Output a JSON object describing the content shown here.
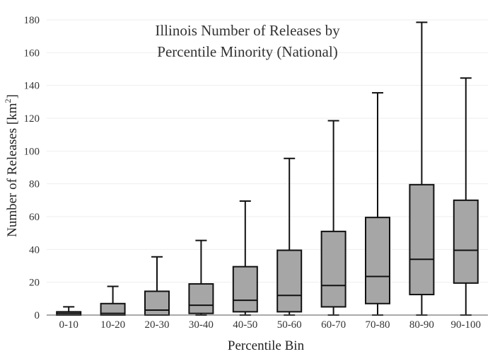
{
  "chart_data": {
    "type": "box",
    "title_lines": [
      "Illinois Number of Releases by",
      "Percentile Minority (National)"
    ],
    "xlabel": "Percentile Bin",
    "ylabel": "Number of Releases  [km",
    "ylabel_sup": "2",
    "ylabel_end": "]",
    "ylim": [
      0,
      180
    ],
    "yticks": [
      0,
      20,
      40,
      60,
      80,
      100,
      120,
      140,
      160,
      180
    ],
    "grid": true,
    "categories": [
      "0-10",
      "10-20",
      "20-30",
      "30-40",
      "40-50",
      "50-60",
      "60-70",
      "70-80",
      "80-90",
      "90-100"
    ],
    "boxes": [
      {
        "min": 0,
        "q1": 0,
        "median": 1,
        "q3": 2,
        "max": 5
      },
      {
        "min": 0,
        "q1": 0,
        "median": 1,
        "q3": 7,
        "max": 17.5
      },
      {
        "min": 0,
        "q1": 0,
        "median": 3,
        "q3": 14.5,
        "max": 35.5
      },
      {
        "min": 0,
        "q1": 1,
        "median": 6,
        "q3": 19,
        "max": 45.5
      },
      {
        "min": 0,
        "q1": 2,
        "median": 9,
        "q3": 29.5,
        "max": 69.5
      },
      {
        "min": 0,
        "q1": 2,
        "median": 12,
        "q3": 39.5,
        "max": 95.5
      },
      {
        "min": 0,
        "q1": 5,
        "median": 18,
        "q3": 51,
        "max": 118.5
      },
      {
        "min": 0,
        "q1": 7,
        "median": 23.5,
        "q3": 59.5,
        "max": 135.5
      },
      {
        "min": 0,
        "q1": 12.5,
        "median": 34,
        "q3": 79.5,
        "max": 178.5
      },
      {
        "min": 0,
        "q1": 19.5,
        "median": 39.5,
        "q3": 70,
        "max": 144.5
      }
    ],
    "colors": {
      "box_fill": "#a6a6a6",
      "box_stroke": "#111111",
      "grid": "#eeeeee"
    }
  }
}
